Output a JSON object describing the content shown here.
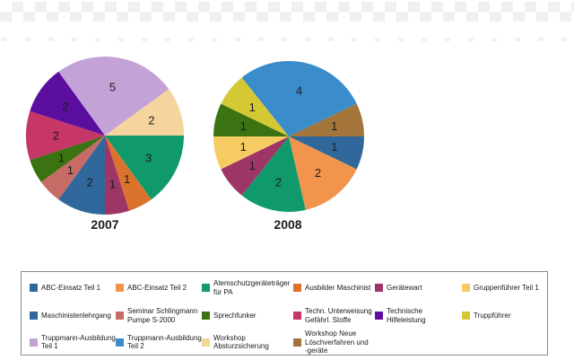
{
  "decor": {
    "checker_color": "#f0f0f0",
    "background": "#ffffff",
    "legend_border_color": "#8c8c8c"
  },
  "chart_data": [
    {
      "type": "pie",
      "title": "2007",
      "total": 20,
      "start_angle": "east",
      "direction": "clockwise",
      "legend_position": "bottom",
      "slices": [
        {
          "label": "Atemschutzgeräteträger für PA",
          "value": 3,
          "color": "#109A6C"
        },
        {
          "label": "Ausbilder Maschinist",
          "value": 1,
          "color": "#DB732E"
        },
        {
          "label": "Gerätewart",
          "value": 1,
          "color": "#9E3567"
        },
        {
          "label": "Maschinistenlehrgang",
          "value": 2,
          "color": "#31689B"
        },
        {
          "label": "Seminar Schlingmann Pumpe S-2000",
          "value": 1,
          "color": "#C76B66"
        },
        {
          "label": "Sprechfunker",
          "value": 1,
          "color": "#3B7212"
        },
        {
          "label": "Techn. Unterweisung Gefährl. Stoffe",
          "value": 2,
          "color": "#C63666"
        },
        {
          "label": "Technische Hilfeleistung",
          "value": 2,
          "color": "#5C0E9E"
        },
        {
          "label": "Truppmann-Ausbildung Teil 1",
          "value": 5,
          "color": "#C3A3D7"
        },
        {
          "label": "Workshop Absturzsicherung",
          "value": 2,
          "color": "#F5D49D"
        }
      ]
    },
    {
      "type": "pie",
      "title": "2008",
      "total": 14,
      "start_angle": "east",
      "direction": "clockwise",
      "legend_position": "bottom",
      "slices": [
        {
          "label": "ABC-Einsatz Teil 1",
          "value": 1,
          "color": "#31689B"
        },
        {
          "label": "ABC-Einsatz Teil 2",
          "value": 2,
          "color": "#F2944C"
        },
        {
          "label": "Atemschutzgeräteträger für PA",
          "value": 2,
          "color": "#109A6C"
        },
        {
          "label": "Gerätewart",
          "value": 1,
          "color": "#9E3567"
        },
        {
          "label": "Gruppenführer Teil 1",
          "value": 1,
          "color": "#F6CB62"
        },
        {
          "label": "Sprechfunker",
          "value": 1,
          "color": "#3B7212"
        },
        {
          "label": "Truppführer",
          "value": 1,
          "color": "#D4C935"
        },
        {
          "label": "Truppmann-Ausbildung Teil 2",
          "value": 4,
          "color": "#3A8CCB"
        },
        {
          "label": "Workshop Neue Löschverfahren und -geräte",
          "value": 1,
          "color": "#A3753B"
        }
      ]
    }
  ],
  "legend": {
    "items": [
      {
        "label": "ABC-Einsatz Teil 1",
        "color": "#31689B"
      },
      {
        "label": "ABC-Einsatz Teil 2",
        "color": "#F2944C"
      },
      {
        "label": "Atemschutzgeräteträger\nfür PA",
        "color": "#109A6C"
      },
      {
        "label": "Ausbilder Maschinist",
        "color": "#DB732E"
      },
      {
        "label": "Gerätewart",
        "color": "#9E3567"
      },
      {
        "label": "Gruppenführer Teil 1",
        "color": "#F6CB62"
      },
      {
        "label": "Maschinistenlehrgang",
        "color": "#31689B"
      },
      {
        "label": "Seminar Schlingmann\nPumpe S-2000",
        "color": "#C76B66"
      },
      {
        "label": "Sprechfunker",
        "color": "#3B7212"
      },
      {
        "label": "Techn. Unterweisung\nGefährl. Stoffe",
        "color": "#C63666"
      },
      {
        "label": "Technische Hilfeleistung",
        "color": "#5C0E9E"
      },
      {
        "label": "Truppführer",
        "color": "#D4C935"
      },
      {
        "label": "Truppmann-Ausbildung\nTeil 1",
        "color": "#C3A3D7"
      },
      {
        "label": "Truppmann-Ausbildung\nTeil 2",
        "color": "#3A8CCB"
      },
      {
        "label": "Workshop\nAbsturzsicherung",
        "color": "#F5D49D"
      },
      {
        "label": "Workshop Neue\nLöschverfahren und\n-geräte",
        "color": "#A3753B"
      }
    ]
  }
}
